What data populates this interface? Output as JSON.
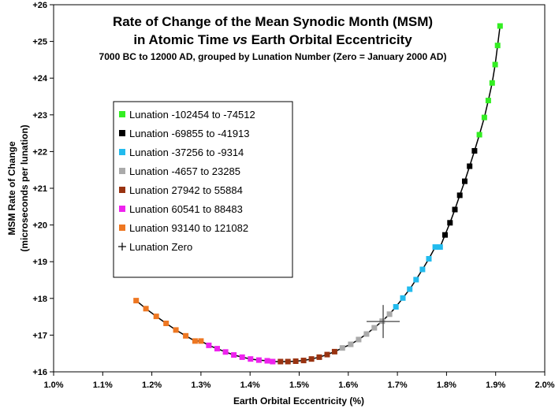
{
  "chart_data": {
    "type": "scatter",
    "title_line1": "Rate of Change of the Mean Synodic Month (MSM)",
    "title_line2_prefix": "in Atomic Time ",
    "title_line2_italic": "vs",
    "title_line2_suffix": " Earth Orbital Eccentricity",
    "subtitle": "7000 BC to 12000 AD, grouped by Lunation Number (Zero = January 2000 AD)",
    "xlabel": "Earth Orbital Eccentricity (%)",
    "ylabel_line1": "MSM Rate of Change",
    "ylabel_line2": "(microseconds per lunation)",
    "xlim": [
      1.0,
      2.0
    ],
    "ylim": [
      16,
      26
    ],
    "x_ticks": [
      1.0,
      1.1,
      1.2,
      1.3,
      1.4,
      1.5,
      1.6,
      1.7,
      1.8,
      1.9,
      2.0
    ],
    "x_tick_labels": [
      "1.0%",
      "1.1%",
      "1.2%",
      "1.3%",
      "1.4%",
      "1.5%",
      "1.6%",
      "1.7%",
      "1.8%",
      "1.9%",
      "2.0%"
    ],
    "y_ticks": [
      16,
      17,
      18,
      19,
      20,
      21,
      22,
      23,
      24,
      25,
      26
    ],
    "y_tick_labels": [
      "+16",
      "+17",
      "+18",
      "+19",
      "+20",
      "+21",
      "+22",
      "+23",
      "+24",
      "+25",
      "+26"
    ],
    "legend_placement": "upper-left",
    "series": [
      {
        "name": "Lunation -102454 to -74512",
        "color": "#33ee22",
        "x": [
          1.867,
          1.877,
          1.885,
          1.893,
          1.899,
          1.904,
          1.909
        ],
        "y": [
          22.46,
          22.93,
          23.39,
          23.87,
          24.37,
          24.89,
          25.42
        ]
      },
      {
        "name": "Lunation -69855 to -41913",
        "color": "#000000",
        "x": [
          1.797,
          1.807,
          1.817,
          1.827,
          1.837,
          1.847,
          1.857
        ],
        "y": [
          19.73,
          20.06,
          20.42,
          20.81,
          21.19,
          21.6,
          22.02
        ]
      },
      {
        "name": "Lunation -37256 to -9314",
        "color": "#22bbee",
        "x": [
          1.697,
          1.711,
          1.725,
          1.738,
          1.751,
          1.764,
          1.777,
          1.787
        ],
        "y": [
          17.77,
          18.01,
          18.25,
          18.51,
          18.79,
          19.08,
          19.4,
          19.4
        ]
      },
      {
        "name": "Lunation -4657 to 23285",
        "color": "#aaaaaa",
        "x": [
          1.588,
          1.605,
          1.621,
          1.637,
          1.653,
          1.669,
          1.684
        ],
        "y": [
          16.65,
          16.75,
          16.88,
          17.03,
          17.2,
          17.38,
          17.57
        ]
      },
      {
        "name": "Lunation 27942 to 55884",
        "color": "#993311",
        "x": [
          1.462,
          1.477,
          1.493,
          1.509,
          1.525,
          1.541,
          1.557,
          1.572
        ],
        "y": [
          16.28,
          16.28,
          16.29,
          16.31,
          16.35,
          16.4,
          16.47,
          16.55
        ]
      },
      {
        "name": "Lunation 60541 to 88483",
        "color": "#ee22ee",
        "x": [
          1.316,
          1.333,
          1.35,
          1.367,
          1.384,
          1.401,
          1.418,
          1.435,
          1.446
        ],
        "y": [
          16.72,
          16.63,
          16.54,
          16.46,
          16.4,
          16.35,
          16.32,
          16.3,
          16.28
        ]
      },
      {
        "name": "Lunation 93140 to 121082",
        "color": "#ee7722",
        "x": [
          1.168,
          1.188,
          1.209,
          1.229,
          1.249,
          1.269,
          1.288,
          1.3
        ],
        "y": [
          17.94,
          17.72,
          17.51,
          17.32,
          17.14,
          16.98,
          16.84,
          16.84
        ]
      }
    ],
    "lunation_zero": {
      "name": "Lunation Zero",
      "x": 1.671,
      "y": 17.37
    }
  }
}
